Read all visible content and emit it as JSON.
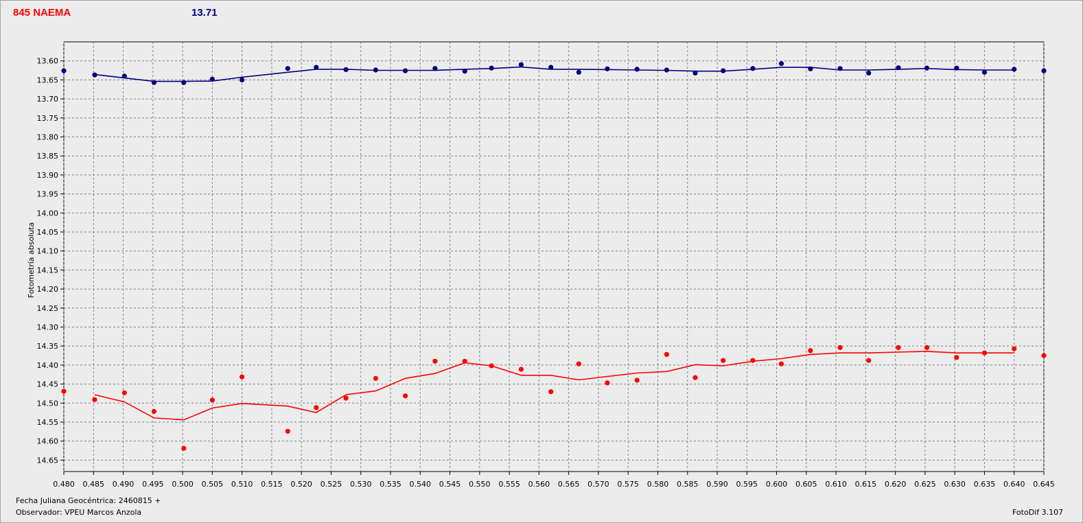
{
  "header": {
    "object_name": "845 NAEMA",
    "comparison_mag": "13.71"
  },
  "footer": {
    "jd_label": "Fecha Juliana Geocéntrica: 2460815 +",
    "observer": "Observador: VPEU Marcos Anzola",
    "version": "FotoDif 3.107"
  },
  "colors": {
    "target": "#ff0000",
    "comparison": "#000080",
    "grid": "#808080",
    "plot_bg": "#ececec"
  },
  "chart_data": {
    "type": "scatter",
    "title": "",
    "xlabel": "",
    "ylabel": "Fotometría absoluta",
    "xlim": [
      0.48,
      0.645
    ],
    "ylim": [
      13.55,
      14.68
    ],
    "y_inverted": true,
    "grid": true,
    "x_ticks": [
      "0.480",
      "0.485",
      "0.490",
      "0.495",
      "0.500",
      "0.505",
      "0.510",
      "0.515",
      "0.520",
      "0.525",
      "0.530",
      "0.535",
      "0.540",
      "0.545",
      "0.550",
      "0.555",
      "0.560",
      "0.565",
      "0.570",
      "0.575",
      "0.580",
      "0.585",
      "0.590",
      "0.595",
      "0.600",
      "0.605",
      "0.610",
      "0.615",
      "0.620",
      "0.625",
      "0.630",
      "0.635",
      "0.640",
      "0.645"
    ],
    "y_ticks": [
      "13.60",
      "13.65",
      "13.70",
      "13.75",
      "13.80",
      "13.85",
      "13.90",
      "13.95",
      "14.00",
      "14.05",
      "14.10",
      "14.15",
      "14.20",
      "14.25",
      "14.30",
      "14.35",
      "14.40",
      "14.45",
      "14.50",
      "14.55",
      "14.60",
      "14.65"
    ],
    "series": [
      {
        "color": "#000080",
        "points": [
          [
            0.48,
            13.626
          ],
          [
            0.4852,
            13.637
          ],
          [
            0.4902,
            13.64
          ],
          [
            0.4952,
            13.657
          ],
          [
            0.5002,
            13.657
          ],
          [
            0.505,
            13.648
          ],
          [
            0.51,
            13.65
          ],
          [
            0.5177,
            13.62
          ],
          [
            0.5225,
            13.617
          ],
          [
            0.5275,
            13.623
          ],
          [
            0.5325,
            13.624
          ],
          [
            0.5375,
            13.626
          ],
          [
            0.5425,
            13.62
          ],
          [
            0.5475,
            13.627
          ],
          [
            0.552,
            13.619
          ],
          [
            0.557,
            13.61
          ],
          [
            0.562,
            13.617
          ],
          [
            0.5667,
            13.63
          ],
          [
            0.5715,
            13.621
          ],
          [
            0.5765,
            13.622
          ],
          [
            0.5815,
            13.624
          ],
          [
            0.5863,
            13.632
          ],
          [
            0.591,
            13.626
          ],
          [
            0.596,
            13.62
          ],
          [
            0.6008,
            13.607
          ],
          [
            0.6057,
            13.621
          ],
          [
            0.6107,
            13.62
          ],
          [
            0.6155,
            13.632
          ],
          [
            0.6205,
            13.618
          ],
          [
            0.6253,
            13.619
          ],
          [
            0.6303,
            13.619
          ],
          [
            0.635,
            13.63
          ],
          [
            0.64,
            13.622
          ],
          [
            0.645,
            13.626
          ]
        ],
        "trend": [
          [
            0.4852,
            13.636
          ],
          [
            0.4902,
            13.645
          ],
          [
            0.4952,
            13.654
          ],
          [
            0.5002,
            13.654
          ],
          [
            0.505,
            13.653
          ],
          [
            0.51,
            13.643
          ],
          [
            0.5177,
            13.63
          ],
          [
            0.5225,
            13.622
          ],
          [
            0.5275,
            13.622
          ],
          [
            0.5325,
            13.625
          ],
          [
            0.5375,
            13.625
          ],
          [
            0.5425,
            13.625
          ],
          [
            0.5475,
            13.622
          ],
          [
            0.552,
            13.62
          ],
          [
            0.557,
            13.616
          ],
          [
            0.562,
            13.622
          ],
          [
            0.5667,
            13.622
          ],
          [
            0.5715,
            13.623
          ],
          [
            0.5765,
            13.624
          ],
          [
            0.5815,
            13.625
          ],
          [
            0.5863,
            13.627
          ],
          [
            0.591,
            13.627
          ],
          [
            0.596,
            13.622
          ],
          [
            0.6008,
            13.617
          ],
          [
            0.6057,
            13.617
          ],
          [
            0.6107,
            13.624
          ],
          [
            0.6155,
            13.624
          ],
          [
            0.6205,
            13.622
          ],
          [
            0.6253,
            13.62
          ],
          [
            0.6303,
            13.623
          ],
          [
            0.635,
            13.624
          ],
          [
            0.64,
            13.624
          ]
        ]
      },
      {
        "color": "#ff0000",
        "points": [
          [
            0.48,
            14.469
          ],
          [
            0.4852,
            14.491
          ],
          [
            0.4902,
            14.473
          ],
          [
            0.4952,
            14.522
          ],
          [
            0.5002,
            14.619
          ],
          [
            0.505,
            14.492
          ],
          [
            0.51,
            14.431
          ],
          [
            0.5177,
            14.574
          ],
          [
            0.5225,
            14.512
          ],
          [
            0.5275,
            14.487
          ],
          [
            0.5325,
            14.435
          ],
          [
            0.5375,
            14.481
          ],
          [
            0.5425,
            14.39
          ],
          [
            0.5475,
            14.39
          ],
          [
            0.552,
            14.402
          ],
          [
            0.557,
            14.411
          ],
          [
            0.562,
            14.47
          ],
          [
            0.5667,
            14.397
          ],
          [
            0.5715,
            14.447
          ],
          [
            0.5765,
            14.44
          ],
          [
            0.5815,
            14.372
          ],
          [
            0.5863,
            14.433
          ],
          [
            0.591,
            14.388
          ],
          [
            0.596,
            14.388
          ],
          [
            0.6008,
            14.397
          ],
          [
            0.6057,
            14.362
          ],
          [
            0.6107,
            14.354
          ],
          [
            0.6155,
            14.388
          ],
          [
            0.6205,
            14.354
          ],
          [
            0.6253,
            14.354
          ],
          [
            0.6303,
            14.38
          ],
          [
            0.635,
            14.368
          ],
          [
            0.64,
            14.357
          ],
          [
            0.645,
            14.375
          ]
        ],
        "trend": [
          [
            0.4852,
            14.478
          ],
          [
            0.4902,
            14.497
          ],
          [
            0.4952,
            14.539
          ],
          [
            0.5002,
            14.544
          ],
          [
            0.505,
            14.513
          ],
          [
            0.51,
            14.501
          ],
          [
            0.5177,
            14.508
          ],
          [
            0.5225,
            14.525
          ],
          [
            0.5275,
            14.478
          ],
          [
            0.5325,
            14.468
          ],
          [
            0.5375,
            14.435
          ],
          [
            0.5425,
            14.422
          ],
          [
            0.5475,
            14.394
          ],
          [
            0.552,
            14.402
          ],
          [
            0.557,
            14.427
          ],
          [
            0.562,
            14.427
          ],
          [
            0.5667,
            14.439
          ],
          [
            0.5715,
            14.43
          ],
          [
            0.5765,
            14.421
          ],
          [
            0.5815,
            14.417
          ],
          [
            0.5863,
            14.399
          ],
          [
            0.591,
            14.402
          ],
          [
            0.596,
            14.39
          ],
          [
            0.6008,
            14.383
          ],
          [
            0.6057,
            14.372
          ],
          [
            0.6107,
            14.368
          ],
          [
            0.6155,
            14.368
          ],
          [
            0.6205,
            14.366
          ],
          [
            0.6253,
            14.364
          ],
          [
            0.6303,
            14.368
          ],
          [
            0.635,
            14.368
          ],
          [
            0.64,
            14.368
          ]
        ]
      }
    ]
  }
}
